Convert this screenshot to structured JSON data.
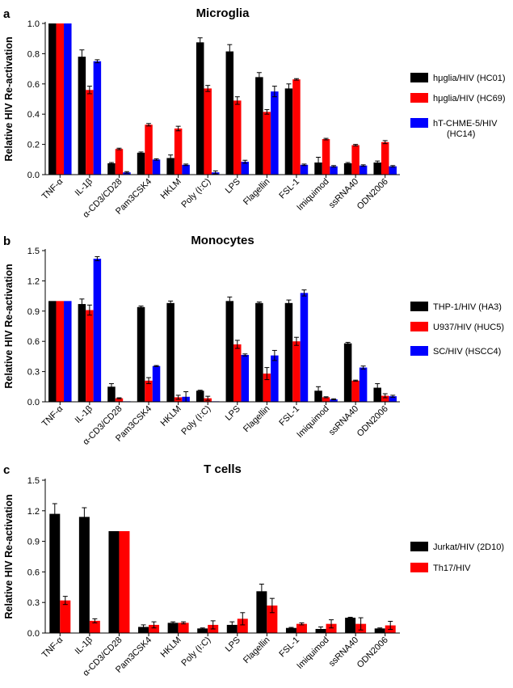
{
  "chart_data": [
    {
      "panel": "a",
      "type": "bar",
      "title": "Microglia",
      "ylabel": "Relative HIV Re-activation",
      "xlabel": "",
      "ylim": [
        0,
        1.0
      ],
      "yticks": [
        "0.0",
        "0.2",
        "0.4",
        "0.6",
        "0.8",
        "1.0"
      ],
      "categories": [
        "TNF-α",
        "IL-1β",
        "α-CD3/CD28",
        "Pam3CSK4",
        "HKLM",
        "Poly (I:C)",
        "LPS",
        "Flagellin",
        "FSL-1",
        "Imiquimod",
        "ssRNA40",
        "ODN2006"
      ],
      "legend_position": "right",
      "series": [
        {
          "name": "hμglia/HIV (HC01)",
          "color": "#000000",
          "values": [
            1.0,
            0.78,
            0.075,
            0.145,
            0.11,
            0.875,
            0.815,
            0.645,
            0.57,
            0.08,
            0.075,
            0.08
          ],
          "errors": [
            0,
            0.045,
            0.005,
            0.005,
            0.02,
            0.03,
            0.045,
            0.03,
            0.03,
            0.035,
            0.005,
            0.01
          ]
        },
        {
          "name": "hμglia/HIV (HC69)",
          "color": "#ff0000",
          "values": [
            1.0,
            0.56,
            0.17,
            0.33,
            0.305,
            0.57,
            0.49,
            0.415,
            0.63,
            0.235,
            0.195,
            0.215
          ],
          "errors": [
            0,
            0.025,
            0.005,
            0.008,
            0.015,
            0.02,
            0.025,
            0.015,
            0.005,
            0.005,
            0.005,
            0.01
          ]
        },
        {
          "name": "hT-CHME-5/HIV (HC14)",
          "color": "#0000ff",
          "values": [
            1.0,
            0.75,
            0.015,
            0.1,
            0.065,
            0.015,
            0.085,
            0.55,
            0.065,
            0.055,
            0.06,
            0.055
          ],
          "errors": [
            0,
            0.01,
            0.005,
            0.005,
            0.005,
            0.01,
            0.01,
            0.035,
            0.005,
            0.005,
            0.005,
            0.005
          ]
        }
      ]
    },
    {
      "panel": "b",
      "type": "bar",
      "title": "Monocytes",
      "ylabel": "Relative HIV Re-activation",
      "xlabel": "",
      "ylim": [
        0,
        1.5
      ],
      "yticks": [
        "0.0",
        "0.3",
        "0.6",
        "0.9",
        "1.2",
        "1.5"
      ],
      "categories": [
        "TNF-α",
        "IL-1β",
        "α-CD3/CD28",
        "Pam3CSK4",
        "HKLM",
        "Poly (I:C)",
        "LPS",
        "Flagellin",
        "FSL-1",
        "Imiquimod",
        "ssRNA40",
        "ODN2006"
      ],
      "legend_position": "right",
      "series": [
        {
          "name": "THP-1/HIV (HA3)",
          "color": "#000000",
          "values": [
            1.0,
            0.97,
            0.15,
            0.94,
            0.98,
            0.11,
            1.0,
            0.98,
            0.98,
            0.11,
            0.58,
            0.14
          ],
          "errors": [
            0,
            0.05,
            0.03,
            0.01,
            0.02,
            0.005,
            0.04,
            0.01,
            0.03,
            0.04,
            0.01,
            0.04
          ]
        },
        {
          "name": "U937/HIV (HUC5)",
          "color": "#ff0000",
          "values": [
            1.0,
            0.91,
            0.035,
            0.21,
            0.045,
            0.035,
            0.57,
            0.28,
            0.6,
            0.045,
            0.21,
            0.06
          ],
          "errors": [
            0,
            0.05,
            0.005,
            0.03,
            0.02,
            0.02,
            0.04,
            0.06,
            0.04,
            0.005,
            0.005,
            0.02
          ]
        },
        {
          "name": "SC/HIV (HSCC4)",
          "color": "#0000ff",
          "values": [
            1.0,
            1.42,
            0.005,
            0.355,
            0.05,
            0.005,
            0.465,
            0.46,
            1.08,
            0.025,
            0.34,
            0.055
          ],
          "errors": [
            0,
            0.02,
            0,
            0.005,
            0.05,
            0,
            0.01,
            0.05,
            0.03,
            0.005,
            0.015,
            0.01
          ]
        }
      ]
    },
    {
      "panel": "c",
      "type": "bar",
      "title": "T cells",
      "ylabel": "Relative HIV Re-activation",
      "xlabel": "",
      "ylim": [
        0,
        1.5
      ],
      "yticks": [
        "0.0",
        "0.3",
        "0.6",
        "0.9",
        "1.2",
        "1.5"
      ],
      "categories": [
        "TNF-α",
        "IL-1β",
        "α-CD3/CD28",
        "Pam3CSK4",
        "HKLM",
        "Poly (I:C)",
        "LPS",
        "Flagellin",
        "FSL-1",
        "Imiquimod",
        "ssRNA40",
        "ODN2006"
      ],
      "legend_position": "right",
      "series": [
        {
          "name": "Jurkat/HIV (2D10)",
          "color": "#000000",
          "values": [
            1.17,
            1.14,
            1.0,
            0.06,
            0.1,
            0.045,
            0.08,
            0.41,
            0.05,
            0.04,
            0.15,
            0.045
          ],
          "errors": [
            0.1,
            0.09,
            0,
            0.02,
            0.01,
            0.005,
            0.03,
            0.07,
            0.005,
            0.02,
            0.005,
            0.005
          ]
        },
        {
          "name": "Th17/HIV",
          "color": "#ff0000",
          "values": [
            0.32,
            0.12,
            1.0,
            0.08,
            0.1,
            0.08,
            0.14,
            0.27,
            0.09,
            0.09,
            0.09,
            0.075
          ],
          "errors": [
            0.04,
            0.02,
            0,
            0.03,
            0.01,
            0.04,
            0.06,
            0.07,
            0.01,
            0.04,
            0.06,
            0.04
          ]
        }
      ]
    }
  ]
}
